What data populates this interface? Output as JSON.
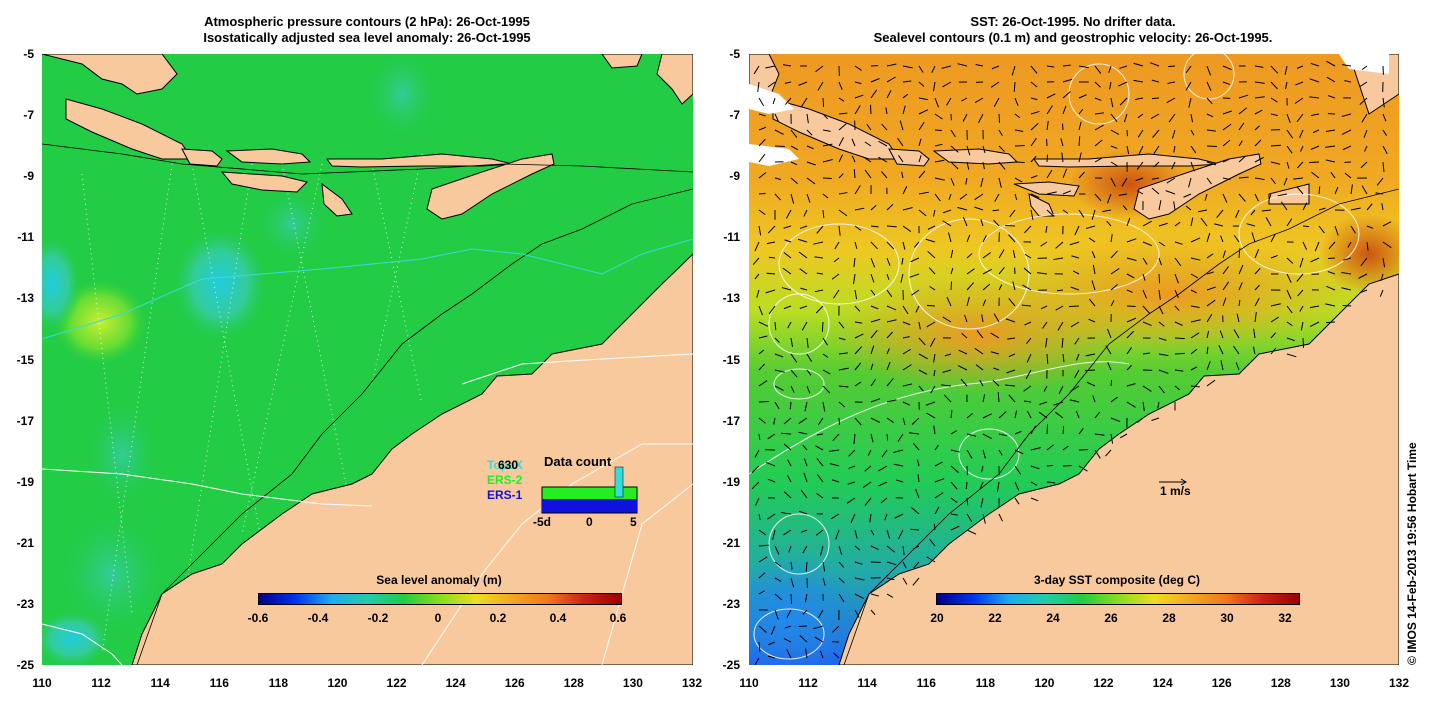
{
  "left_panel": {
    "title_line1": "Atmospheric pressure contours (2 hPa): 26-Oct-1995",
    "title_line2": "Isostatically adjusted sea level anomaly: 26-Oct-1995",
    "colorbar_title": "Sea level anomaly (m)",
    "colorbar_ticks": [
      "-0.6",
      "-0.4",
      "-0.2",
      "0",
      "0.2",
      "0.4",
      "0.6"
    ],
    "legend": {
      "topex_label": "TopeX",
      "count": "630",
      "ers2_label": "ERS-2",
      "ers1_label": "ERS-1",
      "title": "Data count",
      "axis_labels": [
        "-5d",
        "0",
        "5"
      ],
      "colors": {
        "topex": "#33dddd",
        "ers2": "#22ee22",
        "ers1": "#1111dd"
      }
    }
  },
  "right_panel": {
    "title_line1": "SST: 26-Oct-1995. No drifter data.",
    "title_line2": "Sealevel contours (0.1 m) and geostrophic velocity: 26-Oct-1995.",
    "colorbar_title": "3-day SST composite (deg C)",
    "colorbar_ticks": [
      "20",
      "22",
      "24",
      "26",
      "28",
      "30",
      "32"
    ],
    "velocity_scale_label": "1 m/s"
  },
  "axes": {
    "y_ticks": [
      "-5",
      "-7",
      "-9",
      "-11",
      "-13",
      "-15",
      "-17",
      "-19",
      "-21",
      "-23",
      "-25"
    ],
    "x_ticks": [
      "110",
      "112",
      "114",
      "116",
      "118",
      "120",
      "122",
      "124",
      "126",
      "128",
      "130",
      "132"
    ]
  },
  "credit": "© IMOS 14-Feb-2013 19:56 Hobart Time",
  "colors": {
    "land": "#f9c99e",
    "sea_green": "#22cc44",
    "sst_orange": "#ee9922"
  }
}
